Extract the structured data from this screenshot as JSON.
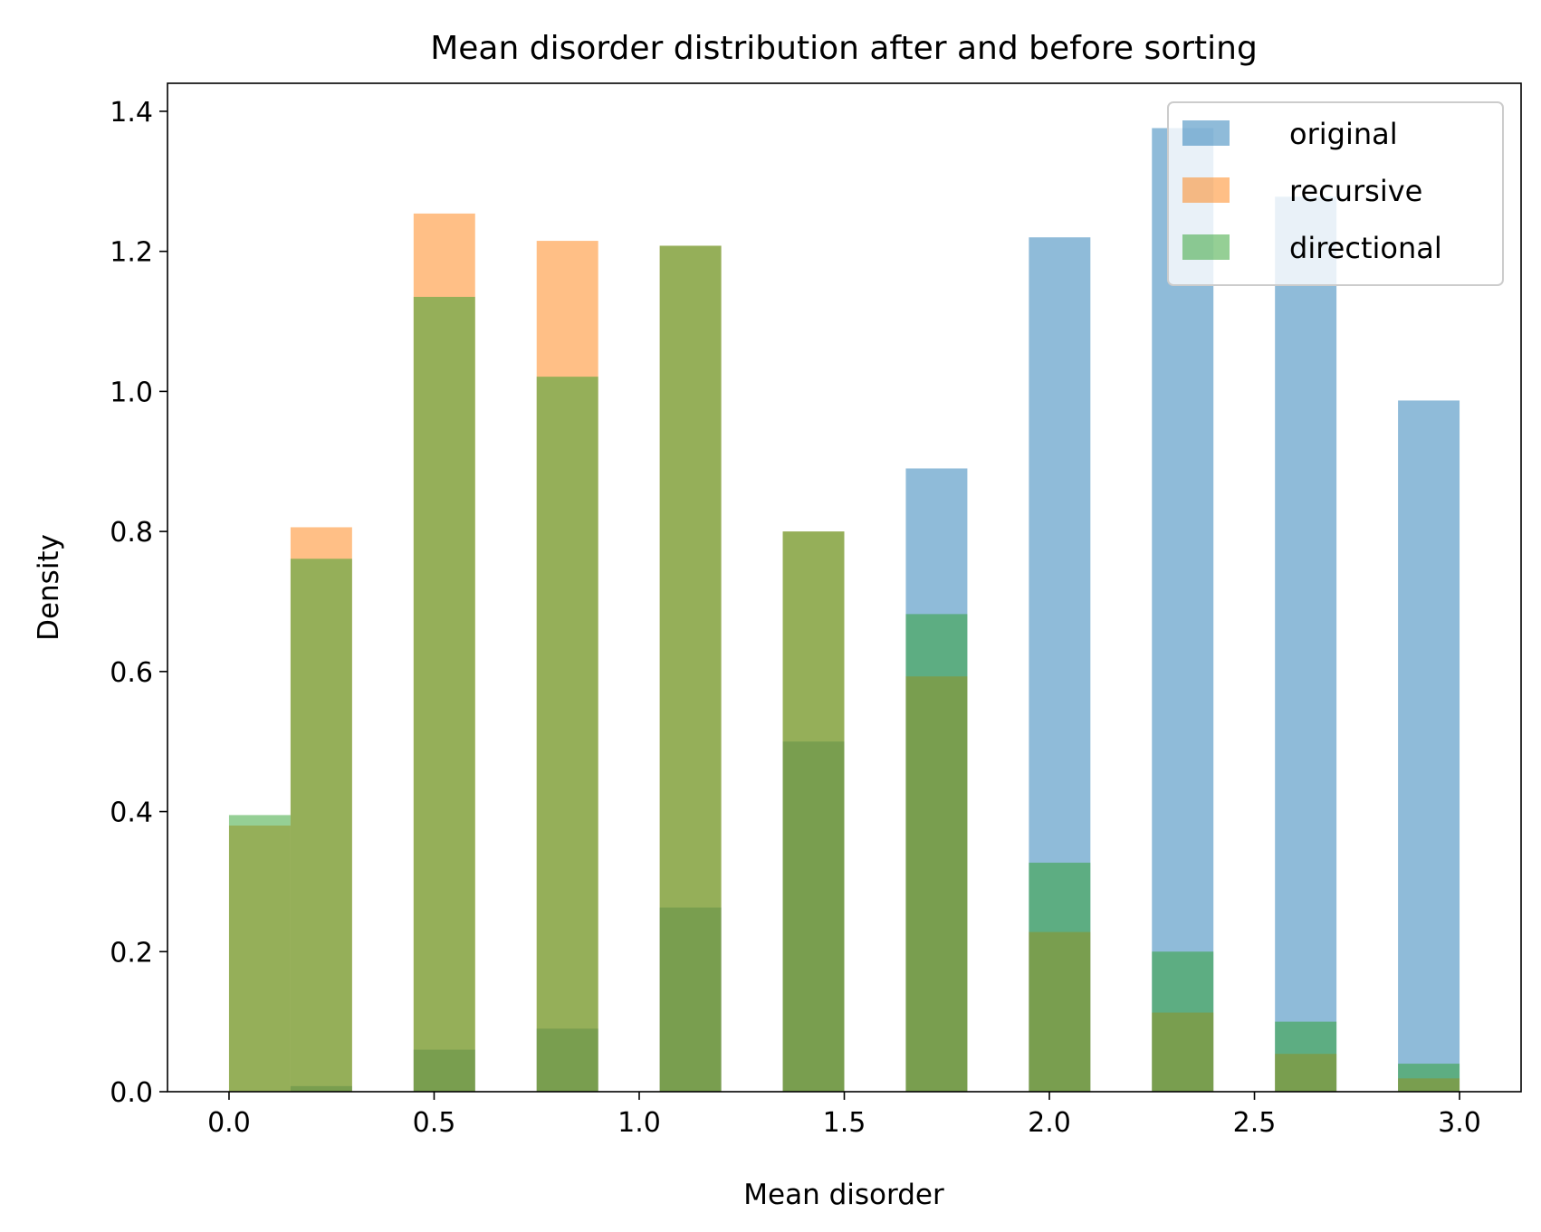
{
  "chart_data": {
    "type": "bar",
    "title": "Mean disorder distribution after and before sorting",
    "xlabel": "Mean disorder",
    "ylabel": "Density",
    "xlim": [
      -0.15,
      3.15
    ],
    "ylim": [
      0,
      1.44
    ],
    "xticks": [
      {
        "value": 0.0,
        "label": "0.0"
      },
      {
        "value": 0.5,
        "label": "0.5"
      },
      {
        "value": 1.0,
        "label": "1.0"
      },
      {
        "value": 1.5,
        "label": "1.5"
      },
      {
        "value": 2.0,
        "label": "2.0"
      },
      {
        "value": 2.5,
        "label": "2.5"
      },
      {
        "value": 3.0,
        "label": "3.0"
      }
    ],
    "yticks": [
      {
        "value": 0.0,
        "label": "0.0"
      },
      {
        "value": 0.2,
        "label": "0.2"
      },
      {
        "value": 0.4,
        "label": "0.4"
      },
      {
        "value": 0.6,
        "label": "0.6"
      },
      {
        "value": 0.8,
        "label": "0.8"
      },
      {
        "value": 1.0,
        "label": "1.0"
      },
      {
        "value": 1.2,
        "label": "1.2"
      },
      {
        "value": 1.4,
        "label": "1.4"
      }
    ],
    "grid": false,
    "legend_position": "top-right",
    "bin_edges": [
      0.0,
      0.15,
      0.3,
      0.45,
      0.6,
      0.75,
      0.9,
      1.05,
      1.2,
      1.35,
      1.5,
      1.65,
      1.8,
      1.95,
      2.1,
      2.25,
      2.4,
      2.55,
      2.7,
      2.85,
      3.0
    ],
    "series": [
      {
        "name": "original",
        "color": "#1f77b4",
        "values": [
          0,
          0.008,
          0,
          0.06,
          0,
          0.09,
          0,
          0.263,
          0,
          0.5,
          0,
          0.89,
          0,
          1.22,
          0,
          1.376,
          0,
          1.278,
          0,
          0.987
        ]
      },
      {
        "name": "recursive",
        "color": "#ff7f0e",
        "values": [
          0.38,
          0.806,
          0,
          1.254,
          0,
          1.215,
          0,
          1.208,
          0,
          0.8,
          0,
          0.593,
          0,
          0.228,
          0,
          0.113,
          0,
          0.054,
          0,
          0.019
        ]
      },
      {
        "name": "directional",
        "color": "#2ca02c",
        "values": [
          0.395,
          0.761,
          0,
          1.135,
          0,
          1.021,
          0,
          1.208,
          0,
          0.8,
          0,
          0.682,
          0,
          0.327,
          0,
          0.2,
          0,
          0.1,
          0,
          0.04
        ]
      }
    ]
  }
}
